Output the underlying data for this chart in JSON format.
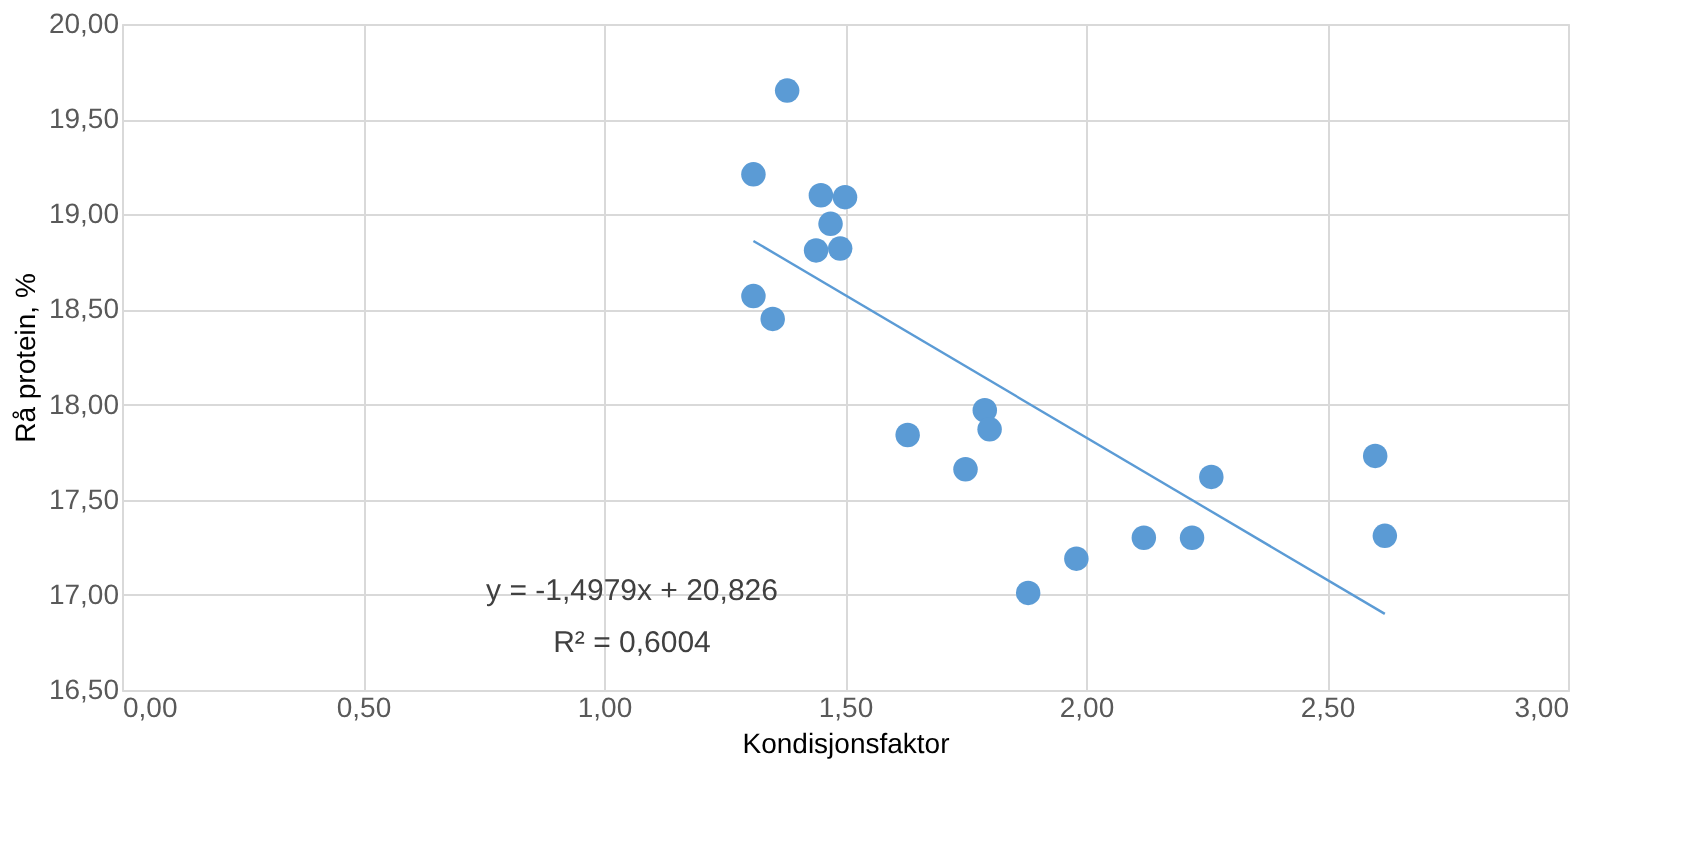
{
  "chart_data": {
    "type": "scatter",
    "xlabel": "Kondisjonsfaktor",
    "ylabel": "Rå protein, %",
    "series": [
      {
        "type": "scatter",
        "color": "#5b9bd5",
        "marker": "circle",
        "x": [
          1.38,
          1.31,
          1.45,
          1.5,
          1.47,
          1.44,
          1.49,
          1.31,
          1.35,
          1.63,
          1.79,
          1.8,
          1.75,
          1.88,
          1.98,
          2.12,
          2.22,
          2.26,
          2.6,
          2.62
        ],
        "values": [
          19.65,
          19.21,
          19.1,
          19.09,
          18.95,
          18.81,
          18.82,
          18.57,
          18.45,
          17.84,
          17.97,
          17.87,
          17.66,
          17.01,
          17.19,
          17.3,
          17.3,
          17.62,
          17.73,
          17.31
        ]
      },
      {
        "type": "line",
        "color": "#5b9bd5",
        "x": [
          1.31,
          2.62
        ],
        "values": [
          18.86,
          16.9
        ]
      }
    ],
    "annotations": [
      "y = -1,4979x + 20,826",
      "R² = 0,6004"
    ],
    "xlim": [
      0,
      3
    ],
    "ylim": [
      16.5,
      20
    ],
    "xticks": [
      {
        "value": 0,
        "label": "0,00"
      },
      {
        "value": 0.5,
        "label": "0,50"
      },
      {
        "value": 1,
        "label": "1,00"
      },
      {
        "value": 1.5,
        "label": "1,50"
      },
      {
        "value": 2,
        "label": "2,00"
      },
      {
        "value": 2.5,
        "label": "2,50"
      },
      {
        "value": 3,
        "label": "3,00"
      }
    ],
    "yticks": [
      {
        "value": 16.5,
        "label": "16,50"
      },
      {
        "value": 17,
        "label": "17,00"
      },
      {
        "value": 17.5,
        "label": "17,50"
      },
      {
        "value": 18,
        "label": "18,00"
      },
      {
        "value": 18.5,
        "label": "18,50"
      },
      {
        "value": 19,
        "label": "19,00"
      },
      {
        "value": 19.5,
        "label": "19,50"
      },
      {
        "value": 20,
        "label": "20,00"
      }
    ],
    "grid": true
  }
}
